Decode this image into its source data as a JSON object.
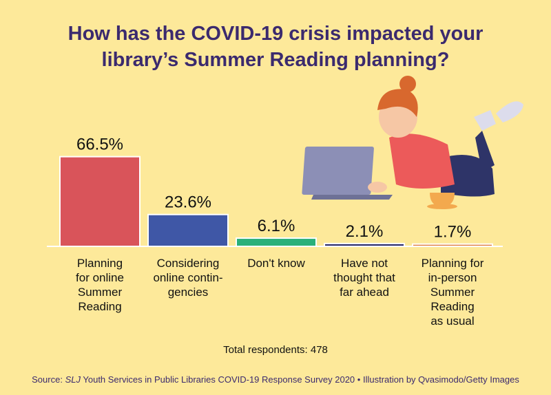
{
  "title": "How has the COVID-19 crisis impacted your\nlibrary’s Summer Reading planning?",
  "chart_data": {
    "type": "bar",
    "categories": [
      "Planning\nfor online\nSummer\nReading",
      "Considering\nonline contin-\ngencies",
      "Don't know",
      "Have not\nthought that\nfar ahead",
      "Planning for\nin-person\nSummer\nReading\nas usual"
    ],
    "values": [
      66.5,
      23.6,
      6.1,
      2.1,
      1.7
    ],
    "value_labels": [
      "66.5%",
      "23.6%",
      "6.1%",
      "2.1%",
      "1.7%"
    ],
    "colors": [
      "#d9545a",
      "#3f57a6",
      "#2bb07a",
      "#2a2a6b",
      "#e07a3a"
    ]
  },
  "note": "Total respondents: 478",
  "source": {
    "prefix": "Source:",
    "publication": "SLJ",
    "survey": "Youth Services in Public Libraries COVID-19 Response Survey 2020",
    "separator": "•",
    "credit": "Illustration by Qvasimodo/Getty Images"
  }
}
